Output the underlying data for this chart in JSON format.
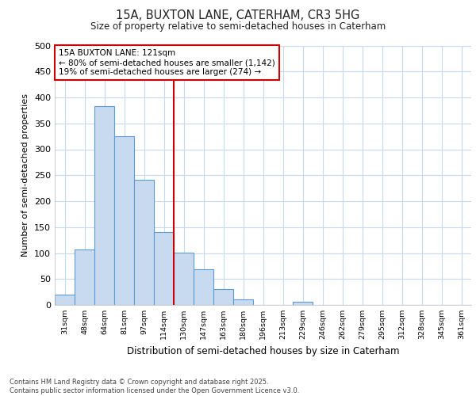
{
  "title_line1": "15A, BUXTON LANE, CATERHAM, CR3 5HG",
  "title_line2": "Size of property relative to semi-detached houses in Caterham",
  "xlabel": "Distribution of semi-detached houses by size in Caterham",
  "ylabel": "Number of semi-detached properties",
  "footnote": "Contains HM Land Registry data © Crown copyright and database right 2025.\nContains public sector information licensed under the Open Government Licence v3.0.",
  "bar_labels": [
    "31sqm",
    "48sqm",
    "64sqm",
    "81sqm",
    "97sqm",
    "114sqm",
    "130sqm",
    "147sqm",
    "163sqm",
    "180sqm",
    "196sqm",
    "213sqm",
    "229sqm",
    "246sqm",
    "262sqm",
    "279sqm",
    "295sqm",
    "312sqm",
    "328sqm",
    "345sqm",
    "361sqm"
  ],
  "bar_values": [
    20,
    107,
    383,
    325,
    241,
    141,
    101,
    69,
    30,
    10,
    0,
    0,
    6,
    0,
    0,
    0,
    0,
    0,
    0,
    0,
    0
  ],
  "bar_color": "#c8daef",
  "bar_edge_color": "#5b9bd5",
  "vline_x": 5.5,
  "vline_color": "#cc0000",
  "annotation_title": "15A BUXTON LANE: 121sqm",
  "annotation_line2": "← 80% of semi-detached houses are smaller (1,142)",
  "annotation_line3": "19% of semi-detached houses are larger (274) →",
  "annotation_box_color": "#cc0000",
  "ylim": [
    0,
    500
  ],
  "yticks": [
    0,
    50,
    100,
    150,
    200,
    250,
    300,
    350,
    400,
    450,
    500
  ],
  "background_color": "#ffffff",
  "plot_bg_color": "#ffffff",
  "grid_color": "#c8d8f0"
}
